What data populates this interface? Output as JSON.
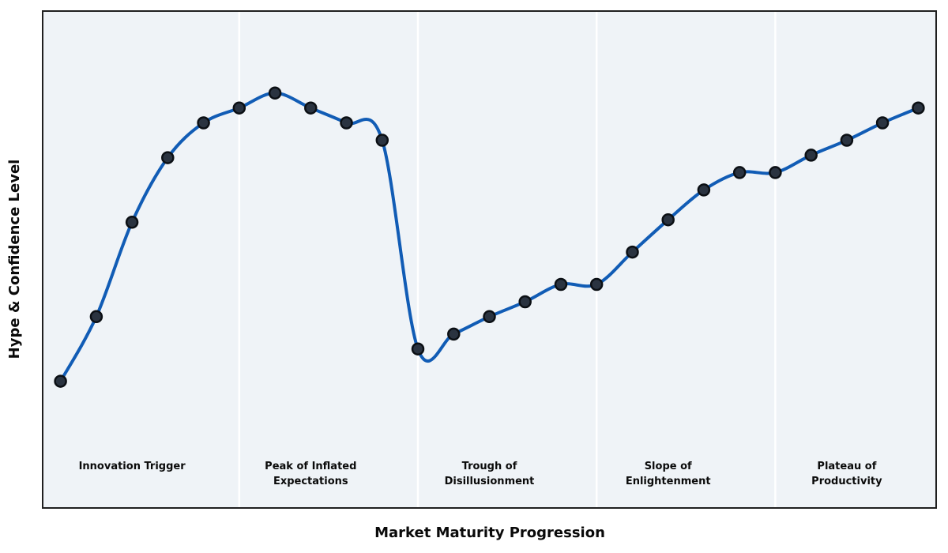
{
  "chart_data": {
    "type": "line",
    "title": "",
    "xlabel": "Market Maturity Progression",
    "ylabel": "Hype & Confidence Level",
    "x": [
      0,
      1,
      2,
      3,
      4,
      5,
      6,
      7,
      8,
      9,
      10,
      11,
      12,
      13,
      14,
      15,
      16,
      17,
      18,
      19,
      20,
      21,
      22,
      23,
      24
    ],
    "y": [
      25.5,
      38.5,
      57.5,
      70.5,
      77.5,
      80.5,
      83.5,
      80.5,
      77.5,
      74,
      32,
      35,
      38.5,
      41.5,
      45,
      45,
      51.5,
      58,
      64,
      67.5,
      67.5,
      71,
      74,
      77.5,
      80.5
    ],
    "xlim": [
      -0.5,
      24.5
    ],
    "ylim": [
      0,
      100
    ],
    "grid": false,
    "legend": "none",
    "axis_ticks": "none",
    "curve_style": "smooth-spline",
    "marker": "circle",
    "phase_dividers_x": [
      5,
      10,
      15,
      20
    ],
    "phases": [
      {
        "label": "Innovation Trigger",
        "lines": [
          "Innovation Trigger"
        ],
        "center_x": 2
      },
      {
        "label": "Peak of Inflated Expectations",
        "lines": [
          "Peak of Inflated",
          "Expectations"
        ],
        "center_x": 7
      },
      {
        "label": "Trough of Disillusionment",
        "lines": [
          "Trough of",
          "Disillusionment"
        ],
        "center_x": 12
      },
      {
        "label": "Slope of Enlightenment",
        "lines": [
          "Slope of",
          "Enlightenment"
        ],
        "center_x": 17
      },
      {
        "label": "Plateau of Productivity",
        "lines": [
          "Plateau of",
          "Productivity"
        ],
        "center_x": 22
      }
    ],
    "colors": {
      "line": "#115cb5",
      "marker_fill": "#2a3340",
      "marker_edge": "#0b0f14",
      "plot_background": "#eff3f7",
      "border": "#1f1f1f",
      "divider": "#ffffff",
      "text": "#0a0a0a"
    }
  }
}
